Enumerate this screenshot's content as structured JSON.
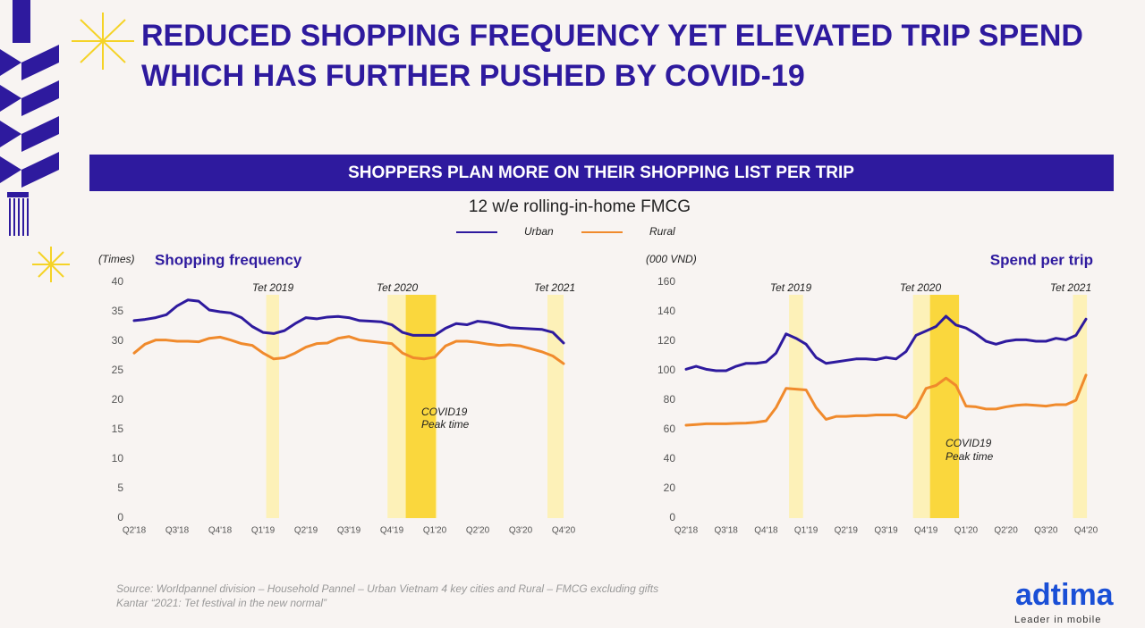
{
  "header": {
    "title_lines": [
      "REDUCED SHOPPING FREQUENCY YET ELEVATED TRIP SPEND",
      "WHICH HAS FURTHER PUSHED BY COVID-19"
    ],
    "banner": "SHOPPERS PLAN MORE ON THEIR SHOPPING LIST PER TRIP",
    "subtitle": "12 w/e rolling-in-home FMCG"
  },
  "chart_data": [
    {
      "type": "line",
      "title": "Shopping frequency",
      "y_label": "(Times)",
      "categories": [
        "Q2'18",
        null,
        null,
        null,
        "Q3'18",
        null,
        null,
        null,
        "Q4'18",
        null,
        null,
        null,
        "Q1'19",
        null,
        null,
        null,
        "Q2'19",
        null,
        null,
        null,
        "Q3'19",
        null,
        null,
        null,
        "Q4'19",
        null,
        null,
        null,
        "Q1'20",
        null,
        null,
        null,
        "Q2'20",
        null,
        null,
        null,
        "Q3'20",
        null,
        null,
        null,
        "Q4'20"
      ],
      "series": [
        {
          "name": "Urban",
          "color": "#2e1a9e",
          "values": [
            33.5,
            33.7,
            34,
            34.5,
            36,
            37,
            36.8,
            35.3,
            35,
            34.8,
            34,
            32.5,
            31.5,
            31.3,
            31.8,
            33,
            34,
            33.8,
            34.1,
            34.2,
            34,
            33.5,
            33.4,
            33.3,
            32.8,
            31.5,
            31,
            31,
            31,
            32.2,
            33,
            32.8,
            33.4,
            33.2,
            32.8,
            32.3,
            32.2,
            32.1,
            32,
            31.5,
            29.7
          ]
        },
        {
          "name": "Rural",
          "color": "#f08a2c",
          "values": [
            28,
            29.5,
            30.2,
            30.2,
            30,
            30,
            29.9,
            30.5,
            30.7,
            30.2,
            29.6,
            29.3,
            28,
            27,
            27.2,
            28,
            29,
            29.6,
            29.7,
            30.5,
            30.8,
            30.2,
            30,
            29.8,
            29.6,
            28,
            27.2,
            27,
            27.3,
            29.2,
            30,
            30,
            29.8,
            29.5,
            29.3,
            29.4,
            29.2,
            28.7,
            28.2,
            27.5,
            26.2
          ]
        }
      ],
      "ylim": [
        0,
        40
      ],
      "yticks": [
        0,
        5,
        10,
        15,
        20,
        25,
        30,
        35,
        40
      ],
      "annotations": [
        "Tet 2019",
        "Tet 2020",
        "Tet 2021",
        "COVID19",
        "Peak time"
      ]
    },
    {
      "type": "line",
      "title": "Spend per trip",
      "y_label": "(000 VND)",
      "categories": [
        "Q2'18",
        null,
        null,
        null,
        "Q3'18",
        null,
        null,
        null,
        "Q4'18",
        null,
        null,
        null,
        "Q1'19",
        null,
        null,
        null,
        "Q2'19",
        null,
        null,
        null,
        "Q3'19",
        null,
        null,
        null,
        "Q4'19",
        null,
        null,
        null,
        "Q1'20",
        null,
        null,
        null,
        "Q2'20",
        null,
        null,
        null,
        "Q3'20",
        null,
        null,
        null,
        "Q4'20"
      ],
      "series": [
        {
          "color": "#2e1a9e",
          "values": [
            101,
            103,
            101,
            100,
            100,
            103,
            105,
            105,
            106,
            112,
            125,
            122,
            118,
            109,
            105,
            106,
            107,
            108,
            108,
            107.5,
            109,
            108,
            113,
            124,
            127,
            130,
            137,
            131,
            129,
            125,
            120,
            118,
            120,
            121,
            121,
            120,
            120,
            122,
            121,
            124,
            135
          ]
        },
        {
          "color": "#f08a2c",
          "values": [
            63,
            63.5,
            64,
            64,
            64,
            64.3,
            64.5,
            65,
            66,
            75,
            88,
            87.5,
            87,
            75,
            67,
            69,
            69,
            69.5,
            69.5,
            70,
            70,
            70,
            68,
            75,
            88,
            90,
            95,
            90,
            76,
            75.5,
            74,
            74,
            75.5,
            76.5,
            77,
            76.5,
            76,
            77,
            77,
            80,
            97
          ]
        }
      ],
      "ylim": [
        0,
        160
      ],
      "yticks": [
        0,
        20,
        40,
        60,
        80,
        100,
        120,
        140,
        160
      ],
      "annotations": [
        "Tet 2019",
        "Tet 2020",
        "Tet 2021",
        "COVID19",
        "Peak time"
      ]
    }
  ],
  "footer": {
    "source_lines": [
      "Source: Worldpannel division – Household Pannel – Urban Vietnam 4 key cities and Rural – FMCG excluding gifts",
      "Kantar “2021: Tet festival in the new normal”"
    ],
    "logo": "adtima",
    "tagline": "Leader in mobile"
  }
}
